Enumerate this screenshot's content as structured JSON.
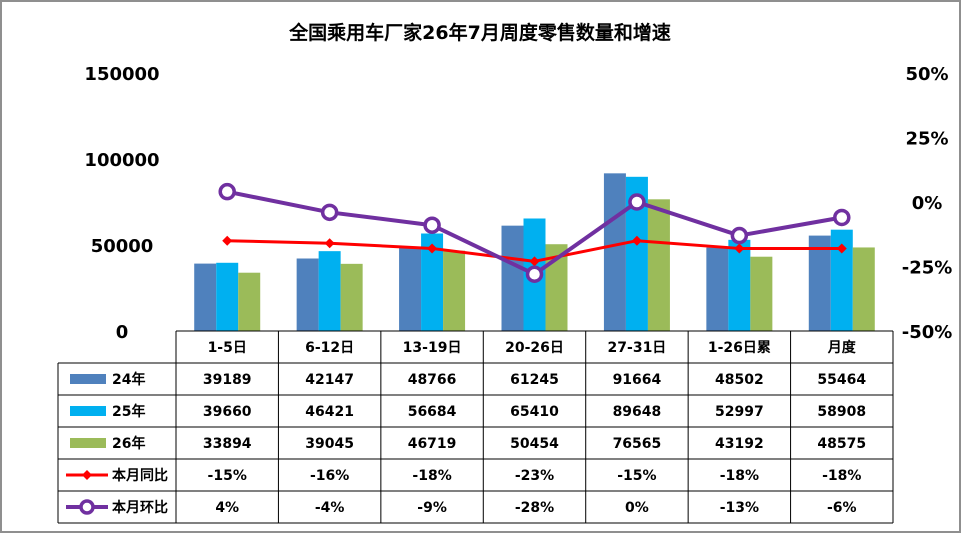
{
  "chart_data": {
    "type": "bar",
    "title": "全国乘用车厂家26年7月周度零售数量和增速",
    "categories": [
      "1-5日",
      "6-12日",
      "13-19日",
      "20-26日",
      "27-31日",
      "1-26日累",
      "月度"
    ],
    "y_left": {
      "ylim": [
        0,
        150000
      ],
      "ticks": [
        "150000",
        "100000",
        "50000",
        "0"
      ]
    },
    "y_right": {
      "ylim": [
        -50,
        50
      ],
      "ticks": [
        "50%",
        "25%",
        "0%",
        "-25%",
        "-50%"
      ]
    },
    "bar_series": [
      {
        "name": "24年",
        "color": "#4f81bd",
        "values": [
          39189,
          42147,
          48766,
          61245,
          91664,
          48502,
          55464
        ],
        "labels": [
          "39189",
          "42147",
          "48766",
          "61245",
          "91664",
          "48502",
          "55464"
        ]
      },
      {
        "name": "25年",
        "color": "#00b0f0",
        "values": [
          39660,
          46421,
          56684,
          65410,
          89648,
          52997,
          58908
        ],
        "labels": [
          "39660",
          "46421",
          "56684",
          "65410",
          "89648",
          "52997",
          "58908"
        ]
      },
      {
        "name": "26年",
        "color": "#9bbb59",
        "values": [
          33894,
          39045,
          46719,
          50454,
          76565,
          43192,
          48575
        ],
        "labels": [
          "33894",
          "39045",
          "46719",
          "50454",
          "76565",
          "43192",
          "48575"
        ]
      }
    ],
    "line_series": [
      {
        "name": "本月同比",
        "color": "#ff0000",
        "marker": "diamond",
        "values": [
          -15,
          -16,
          -18,
          -23,
          -15,
          -18,
          -18
        ],
        "labels": [
          "-15%",
          "-16%",
          "-18%",
          "-23%",
          "-15%",
          "-18%",
          "-18%"
        ]
      },
      {
        "name": "本月环比",
        "color": "#7030a0",
        "marker": "circle",
        "values": [
          4,
          -4,
          -9,
          -28,
          0,
          -13,
          -6
        ],
        "labels": [
          "4%",
          "-4%",
          "-9%",
          "-28%",
          "0%",
          "-13%",
          "-6%"
        ]
      }
    ]
  }
}
